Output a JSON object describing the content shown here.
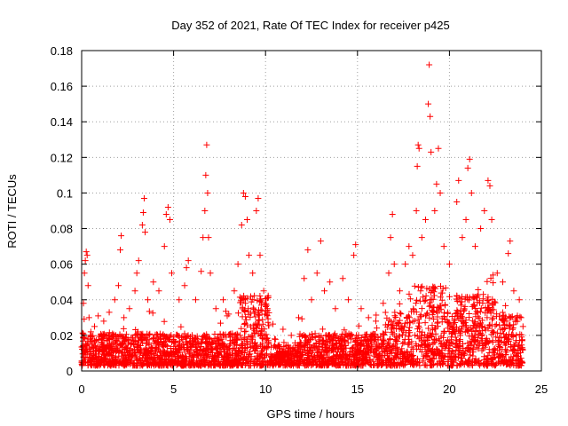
{
  "chart_data": {
    "type": "scatter",
    "title": "Day 352 of 2021, Rate Of TEC Index for receiver p425",
    "xlabel": "GPS time / hours",
    "ylabel": "ROTI / TECUs",
    "xlim": [
      0,
      25
    ],
    "ylim": [
      0,
      0.18
    ],
    "x_ticks": [
      0,
      5,
      10,
      15,
      20,
      25
    ],
    "y_ticks": [
      0,
      0.02,
      0.04,
      0.06,
      0.08,
      0.1,
      0.12,
      0.14,
      0.16,
      0.18
    ],
    "x_tick_labels": [
      "0",
      "5",
      "10",
      "15",
      "20",
      "25"
    ],
    "y_tick_labels": [
      "0",
      "0.02",
      "0.04",
      "0.06",
      "0.08",
      "0.1",
      "0.12",
      "0.14",
      "0.16",
      "0.18"
    ],
    "grid": true,
    "marker": "+",
    "marker_color": "#ff0000",
    "series": [
      {
        "name": "ROTI",
        "points": [
          [
            0.1,
            0.038
          ],
          [
            0.15,
            0.055
          ],
          [
            0.2,
            0.062
          ],
          [
            0.25,
            0.067
          ],
          [
            0.3,
            0.065
          ],
          [
            0.35,
            0.048
          ],
          [
            0.4,
            0.03
          ],
          [
            0.5,
            0.022
          ],
          [
            0.7,
            0.025
          ],
          [
            0.9,
            0.031
          ],
          [
            1.2,
            0.028
          ],
          [
            1.5,
            0.033
          ],
          [
            1.7,
            0.02
          ],
          [
            1.8,
            0.04
          ],
          [
            2.0,
            0.048
          ],
          [
            2.1,
            0.068
          ],
          [
            2.15,
            0.076
          ],
          [
            2.3,
            0.03
          ],
          [
            2.6,
            0.035
          ],
          [
            2.9,
            0.045
          ],
          [
            3.0,
            0.055
          ],
          [
            3.1,
            0.062
          ],
          [
            3.3,
            0.082
          ],
          [
            3.35,
            0.089
          ],
          [
            3.4,
            0.097
          ],
          [
            3.45,
            0.078
          ],
          [
            3.6,
            0.04
          ],
          [
            3.9,
            0.05
          ],
          [
            4.2,
            0.045
          ],
          [
            4.5,
            0.07
          ],
          [
            4.6,
            0.088
          ],
          [
            4.7,
            0.092
          ],
          [
            4.8,
            0.085
          ],
          [
            4.9,
            0.055
          ],
          [
            5.3,
            0.04
          ],
          [
            5.6,
            0.048
          ],
          [
            5.7,
            0.058
          ],
          [
            5.8,
            0.062
          ],
          [
            6.2,
            0.04
          ],
          [
            6.5,
            0.056
          ],
          [
            6.6,
            0.075
          ],
          [
            6.7,
            0.09
          ],
          [
            6.75,
            0.11
          ],
          [
            6.8,
            0.127
          ],
          [
            6.85,
            0.1
          ],
          [
            6.9,
            0.075
          ],
          [
            7.0,
            0.055
          ],
          [
            7.3,
            0.035
          ],
          [
            7.7,
            0.04
          ],
          [
            8.0,
            0.032
          ],
          [
            8.3,
            0.045
          ],
          [
            8.5,
            0.06
          ],
          [
            8.7,
            0.082
          ],
          [
            8.8,
            0.1
          ],
          [
            8.9,
            0.098
          ],
          [
            9.0,
            0.085
          ],
          [
            9.1,
            0.065
          ],
          [
            9.3,
            0.055
          ],
          [
            9.5,
            0.09
          ],
          [
            9.6,
            0.097
          ],
          [
            9.7,
            0.065
          ],
          [
            9.9,
            0.045
          ],
          [
            10.1,
            0.035
          ],
          [
            10.5,
            0.018
          ],
          [
            11.0,
            0.016
          ],
          [
            11.4,
            0.02
          ],
          [
            11.8,
            0.03
          ],
          [
            12.1,
            0.052
          ],
          [
            12.3,
            0.068
          ],
          [
            12.5,
            0.04
          ],
          [
            12.8,
            0.055
          ],
          [
            13.0,
            0.073
          ],
          [
            13.2,
            0.045
          ],
          [
            13.5,
            0.05
          ],
          [
            13.8,
            0.035
          ],
          [
            14.2,
            0.052
          ],
          [
            14.5,
            0.04
          ],
          [
            14.8,
            0.065
          ],
          [
            14.9,
            0.071
          ],
          [
            15.2,
            0.035
          ],
          [
            15.6,
            0.03
          ],
          [
            16.0,
            0.028
          ],
          [
            16.4,
            0.038
          ],
          [
            16.7,
            0.055
          ],
          [
            16.8,
            0.075
          ],
          [
            16.9,
            0.088
          ],
          [
            17.0,
            0.06
          ],
          [
            17.3,
            0.045
          ],
          [
            17.6,
            0.06
          ],
          [
            17.8,
            0.07
          ],
          [
            18.0,
            0.065
          ],
          [
            18.2,
            0.09
          ],
          [
            18.25,
            0.115
          ],
          [
            18.3,
            0.127
          ],
          [
            18.35,
            0.125
          ],
          [
            18.5,
            0.075
          ],
          [
            18.7,
            0.085
          ],
          [
            18.85,
            0.15
          ],
          [
            18.9,
            0.172
          ],
          [
            18.95,
            0.143
          ],
          [
            19.0,
            0.123
          ],
          [
            19.2,
            0.09
          ],
          [
            19.3,
            0.105
          ],
          [
            19.4,
            0.125
          ],
          [
            19.5,
            0.1
          ],
          [
            19.7,
            0.07
          ],
          [
            20.0,
            0.06
          ],
          [
            20.4,
            0.095
          ],
          [
            20.5,
            0.107
          ],
          [
            20.7,
            0.075
          ],
          [
            20.9,
            0.085
          ],
          [
            21.0,
            0.114
          ],
          [
            21.1,
            0.119
          ],
          [
            21.2,
            0.1
          ],
          [
            21.4,
            0.07
          ],
          [
            21.7,
            0.08
          ],
          [
            21.9,
            0.09
          ],
          [
            22.1,
            0.107
          ],
          [
            22.2,
            0.104
          ],
          [
            22.3,
            0.085
          ],
          [
            22.6,
            0.055
          ],
          [
            22.9,
            0.05
          ],
          [
            23.2,
            0.066
          ],
          [
            23.3,
            0.073
          ],
          [
            23.5,
            0.045
          ],
          [
            23.8,
            0.04
          ],
          [
            23.9,
            0.03
          ],
          [
            24.0,
            0.025
          ]
        ]
      }
    ]
  }
}
